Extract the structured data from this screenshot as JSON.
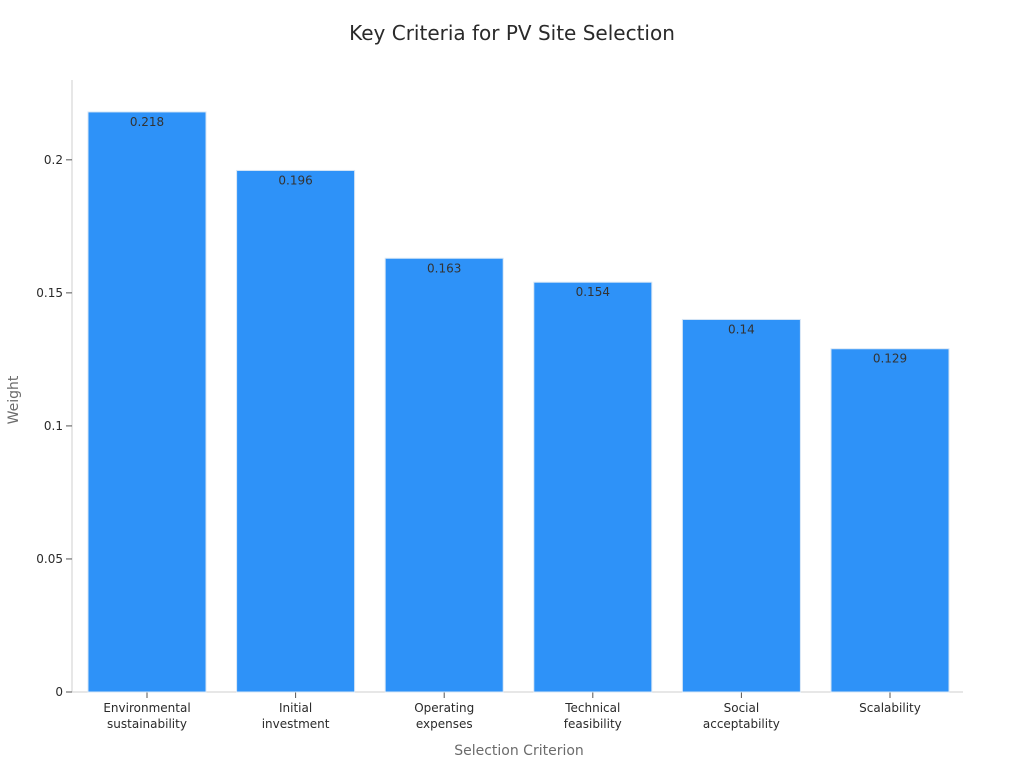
{
  "chart_data": {
    "type": "bar",
    "title": "Key Criteria for PV Site Selection",
    "xlabel": "Selection Criterion",
    "ylabel": "Weight",
    "categories": [
      [
        "Environmental",
        "sustainability"
      ],
      [
        "Initial",
        "investment"
      ],
      [
        "Operating",
        "expenses"
      ],
      [
        "Technical",
        "feasibility"
      ],
      [
        "Social",
        "acceptability"
      ],
      [
        "Scalability"
      ]
    ],
    "values": [
      0.218,
      0.196,
      0.163,
      0.154,
      0.14,
      0.129
    ],
    "data_labels": [
      "0.218",
      "0.196",
      "0.163",
      "0.154",
      "0.14",
      "0.129"
    ],
    "yticks": [
      0,
      0.05,
      0.1,
      0.15,
      0.2
    ],
    "ytick_labels": [
      "0",
      "0.05",
      "0.1",
      "0.15",
      "0.2"
    ],
    "ylim": [
      0,
      0.23
    ],
    "grid": false,
    "colors": {
      "bar": "#2e92f8",
      "bar_edge": "#d7e6f5",
      "axis": "#cfcfcf"
    }
  }
}
